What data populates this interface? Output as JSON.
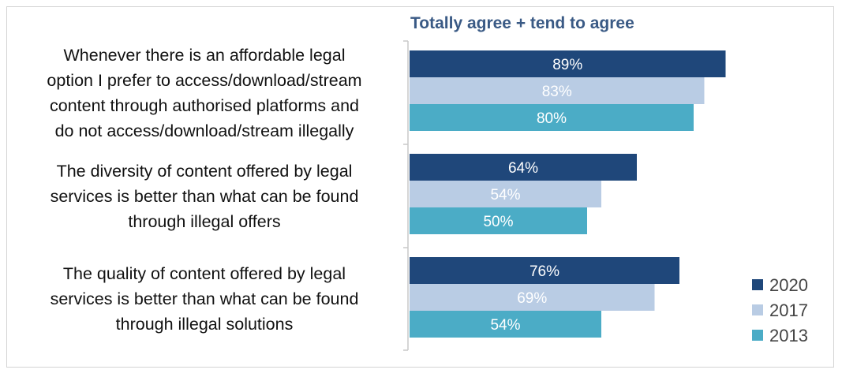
{
  "chart_data": {
    "type": "bar",
    "orientation": "horizontal",
    "title": "Totally agree + tend to agree",
    "categories": [
      [
        "Whenever there is an affordable legal",
        "option I prefer to access/download/stream",
        "content through authorised platforms and",
        "do not access/download/stream illegally"
      ],
      [
        "The diversity of content offered by legal",
        "services is better than what can be found",
        "through illegal offers"
      ],
      [
        "The quality of content offered by legal",
        "services is better than what can be found",
        "through illegal solutions"
      ]
    ],
    "series": [
      {
        "name": "2020",
        "values": [
          89,
          64,
          76
        ],
        "labels": [
          "89%",
          "64%",
          "76%"
        ],
        "color": "#1f477a"
      },
      {
        "name": "2017",
        "values": [
          83,
          54,
          69
        ],
        "labels": [
          "83%",
          "54%",
          "69%"
        ],
        "color": "#b9cce4"
      },
      {
        "name": "2013",
        "values": [
          80,
          50,
          54
        ],
        "labels": [
          "80%",
          "50%",
          "54%"
        ],
        "color": "#4bacc6"
      }
    ],
    "xlim": [
      0,
      100
    ],
    "grid": false,
    "legend_position": "bottom-right"
  }
}
